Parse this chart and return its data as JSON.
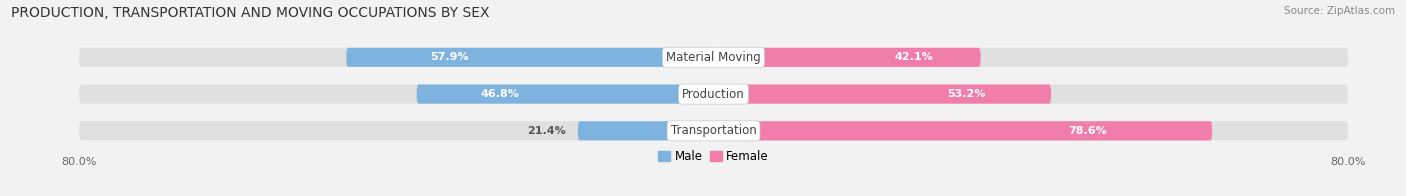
{
  "title": "PRODUCTION, TRANSPORTATION AND MOVING OCCUPATIONS BY SEX",
  "source": "Source: ZipAtlas.com",
  "categories": [
    "Material Moving",
    "Production",
    "Transportation"
  ],
  "male_values": [
    57.9,
    46.8,
    21.4
  ],
  "female_values": [
    42.1,
    53.2,
    78.6
  ],
  "x_min": -80.0,
  "x_max": 80.0,
  "male_color": "#7EB3E0",
  "female_color": "#F07DAA",
  "male_color_light": "#B8D3EF",
  "female_color_light": "#F5AECA",
  "bar_height": 0.52,
  "background_color": "#f2f2f2",
  "bar_bg_color": "#e0e0e0",
  "title_fontsize": 10,
  "label_fontsize": 8.5,
  "pct_fontsize": 8,
  "axis_label_fontsize": 8,
  "source_fontsize": 7.5
}
